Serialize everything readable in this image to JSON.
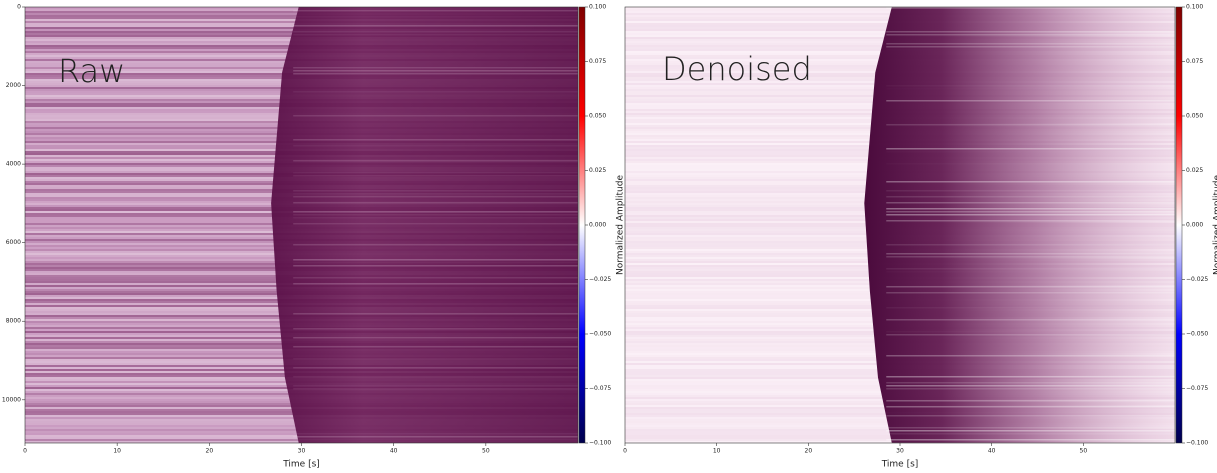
{
  "chart_data": [
    {
      "type": "heatmap",
      "title": "Raw",
      "xlabel": "Time [s]",
      "xlim": [
        0,
        60
      ],
      "xticks": [
        0,
        10,
        20,
        30,
        40,
        50
      ],
      "ylim": [
        0,
        11100
      ],
      "y_inverted": true,
      "yticks": [
        0,
        2000,
        4000,
        6000,
        8000,
        10000
      ],
      "colorbar": {
        "label": "Normalized Amplitude",
        "lim": [
          -0.1,
          0.1
        ],
        "colors": [
          "#00004c",
          "#0000ff",
          "#ffffff",
          "#ff0000",
          "#7f0000"
        ],
        "ticks": [
          {
            "value": 0.1,
            "label": "0.100"
          },
          {
            "value": 0.075,
            "label": "0.075"
          },
          {
            "value": 0.05,
            "label": "0.050"
          },
          {
            "value": 0.025,
            "label": "0.025"
          },
          {
            "value": 0,
            "label": "0.000"
          },
          {
            "value": -0.025,
            "label": "−0.025"
          },
          {
            "value": -0.05,
            "label": "−0.050"
          },
          {
            "value": -0.075,
            "label": "−0.075"
          },
          {
            "value": -0.1,
            "label": "−0.100"
          }
        ]
      }
    },
    {
      "type": "heatmap",
      "title": "Denoised",
      "xlabel": "Time [s]",
      "xlim": [
        0,
        60
      ],
      "xticks": [
        0,
        10,
        20,
        30,
        40,
        50
      ],
      "ylim": [
        0,
        11100
      ],
      "y_inverted": true,
      "colorbar": {
        "label": "Normalized Amplitude",
        "lim": [
          -0.1,
          0.1
        ],
        "colors": [
          "#00004c",
          "#0000ff",
          "#ffffff",
          "#ff0000",
          "#7f0000"
        ],
        "ticks": [
          {
            "value": 0.1,
            "label": "0.100"
          },
          {
            "value": 0.075,
            "label": "0.075"
          },
          {
            "value": 0.05,
            "label": "0.050"
          },
          {
            "value": 0.025,
            "label": "0.025"
          },
          {
            "value": 0,
            "label": "0.000"
          },
          {
            "value": -0.025,
            "label": "−0.025"
          },
          {
            "value": -0.05,
            "label": "−0.050"
          },
          {
            "value": -0.075,
            "label": "−0.075"
          },
          {
            "value": -0.1,
            "label": "−0.100"
          }
        ]
      }
    }
  ]
}
